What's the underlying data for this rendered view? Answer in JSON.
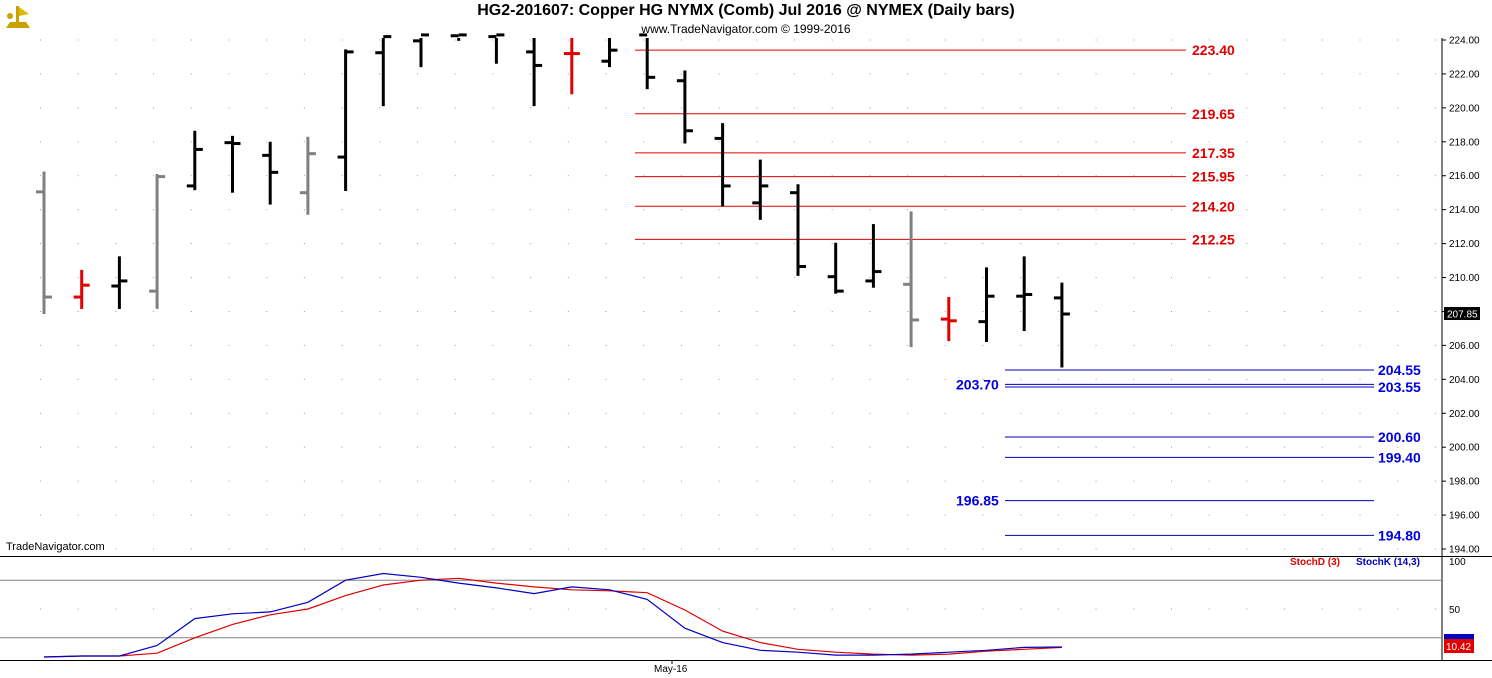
{
  "header": {
    "title": "HG2-201607:  Copper HG NYMX (Comb) Jul 2016 @ NYMEX  (Daily bars)",
    "copyright": "www.TradeNavigator.com © 1999-2016",
    "watermark": "TradeNavigator.com"
  },
  "colors": {
    "up": "#000000",
    "down_gray": "#808080",
    "red_bar": "#e00000",
    "resistance": "#e00000",
    "support": "#0000c0",
    "stoch_k": "#0000c0",
    "stoch_d": "#e00000"
  },
  "chart_data": [
    {
      "type": "ohlc",
      "ylim": [
        193,
        224.5
      ],
      "y_ticks": [
        "224.00",
        "222.00",
        "220.00",
        "218.00",
        "216.00",
        "214.00",
        "212.00",
        "210.00",
        "208.00",
        "206.00",
        "204.00",
        "202.00",
        "200.00",
        "198.00",
        "196.00",
        "194.00"
      ],
      "x_tick_label": "May-16",
      "last_price_label": "207.85",
      "bars": [
        {
          "o": 215.05,
          "h": 216.25,
          "l": 207.85,
          "c": 208.85,
          "color": "gray"
        },
        {
          "o": 208.85,
          "h": 210.45,
          "l": 208.15,
          "c": 209.55,
          "color": "red"
        },
        {
          "o": 209.5,
          "h": 211.25,
          "l": 208.15,
          "c": 209.8,
          "color": "black"
        },
        {
          "o": 209.2,
          "h": 216.1,
          "l": 208.15,
          "c": 215.95,
          "color": "gray"
        },
        {
          "o": 215.4,
          "h": 218.65,
          "l": 215.15,
          "c": 217.55,
          "color": "black"
        },
        {
          "o": 217.95,
          "h": 218.35,
          "l": 215.0,
          "c": 217.9,
          "color": "black"
        },
        {
          "o": 217.2,
          "h": 218.0,
          "l": 214.3,
          "c": 216.2,
          "color": "black"
        },
        {
          "o": 215.0,
          "h": 218.3,
          "l": 213.7,
          "c": 217.3,
          "color": "gray"
        },
        {
          "o": 217.1,
          "h": 223.45,
          "l": 215.1,
          "c": 223.3,
          "color": "black"
        },
        {
          "o": 223.25,
          "h": 224.5,
          "l": 220.1,
          "c": 224.2,
          "color": "black"
        },
        {
          "o": 223.95,
          "h": 224.5,
          "l": 222.4,
          "c": 224.3,
          "color": "black"
        },
        {
          "o": 224.25,
          "h": 224.5,
          "l": 223.95,
          "c": 224.3,
          "color": "black"
        },
        {
          "o": 224.2,
          "h": 224.5,
          "l": 222.6,
          "c": 224.3,
          "color": "black"
        },
        {
          "o": 223.3,
          "h": 224.5,
          "l": 220.1,
          "c": 222.5,
          "color": "black"
        },
        {
          "o": 223.2,
          "h": 224.5,
          "l": 220.8,
          "c": 223.2,
          "color": "red"
        },
        {
          "o": 222.75,
          "h": 224.5,
          "l": 222.4,
          "c": 223.4,
          "color": "black"
        },
        {
          "o": 224.3,
          "h": 224.5,
          "l": 221.1,
          "c": 221.8,
          "color": "black"
        },
        {
          "o": 221.6,
          "h": 222.2,
          "l": 217.9,
          "c": 218.65,
          "color": "black"
        },
        {
          "o": 218.2,
          "h": 219.1,
          "l": 214.2,
          "c": 215.4,
          "color": "black"
        },
        {
          "o": 214.4,
          "h": 216.95,
          "l": 213.4,
          "c": 215.4,
          "color": "black"
        },
        {
          "o": 215.0,
          "h": 215.5,
          "l": 210.1,
          "c": 210.65,
          "color": "black"
        },
        {
          "o": 210.05,
          "h": 212.05,
          "l": 209.05,
          "c": 209.2,
          "color": "black"
        },
        {
          "o": 209.8,
          "h": 213.15,
          "l": 209.4,
          "c": 210.35,
          "color": "black"
        },
        {
          "o": 209.6,
          "h": 213.9,
          "l": 205.9,
          "c": 207.5,
          "color": "gray"
        },
        {
          "o": 207.55,
          "h": 208.85,
          "l": 206.25,
          "c": 207.45,
          "color": "red"
        },
        {
          "o": 207.4,
          "h": 210.6,
          "l": 206.2,
          "c": 208.9,
          "color": "black"
        },
        {
          "o": 208.9,
          "h": 211.25,
          "l": 206.85,
          "c": 209.0,
          "color": "black"
        },
        {
          "o": 208.8,
          "h": 209.7,
          "l": 204.7,
          "c": 207.85,
          "color": "black"
        }
      ],
      "resistance_levels": [
        {
          "value": 223.4,
          "label": "223.40"
        },
        {
          "value": 219.65,
          "label": "219.65"
        },
        {
          "value": 217.35,
          "label": "217.35"
        },
        {
          "value": 215.95,
          "label": "215.95"
        },
        {
          "value": 214.2,
          "label": "214.20"
        },
        {
          "value": 212.25,
          "label": "212.25"
        }
      ],
      "support_levels": [
        {
          "value": 204.55,
          "label": "204.55",
          "side": "right"
        },
        {
          "value": 203.7,
          "label": "203.70",
          "side": "left"
        },
        {
          "value": 203.55,
          "label": "203.55",
          "side": "right"
        },
        {
          "value": 200.6,
          "label": "200.60",
          "side": "right"
        },
        {
          "value": 199.4,
          "label": "199.40",
          "side": "right"
        },
        {
          "value": 196.85,
          "label": "196.85",
          "side": "left"
        },
        {
          "value": 194.8,
          "label": "194.80",
          "side": "right"
        }
      ]
    },
    {
      "type": "line",
      "ylim": [
        0,
        100
      ],
      "y_ticks": [
        "100",
        "50"
      ],
      "reference_lines": [
        80,
        20
      ],
      "value_label": "10.42",
      "legend": [
        "StochD (3)",
        "StochK (14,3)"
      ],
      "series": [
        {
          "name": "StochK (14,3)",
          "values": [
            0,
            1,
            1,
            12,
            40,
            45,
            47,
            57,
            80,
            87,
            83,
            77,
            72,
            66,
            73,
            70,
            60,
            30,
            15,
            7,
            5,
            2,
            2,
            3,
            5,
            7,
            10,
            10.42
          ]
        },
        {
          "name": "StochD (3)",
          "values": [
            0,
            1,
            1,
            4,
            20,
            34,
            44,
            50,
            64,
            75,
            80,
            82,
            77,
            73,
            70,
            69,
            67,
            49,
            27,
            15,
            8,
            5,
            3,
            2,
            3,
            6,
            8,
            10
          ]
        }
      ]
    }
  ]
}
